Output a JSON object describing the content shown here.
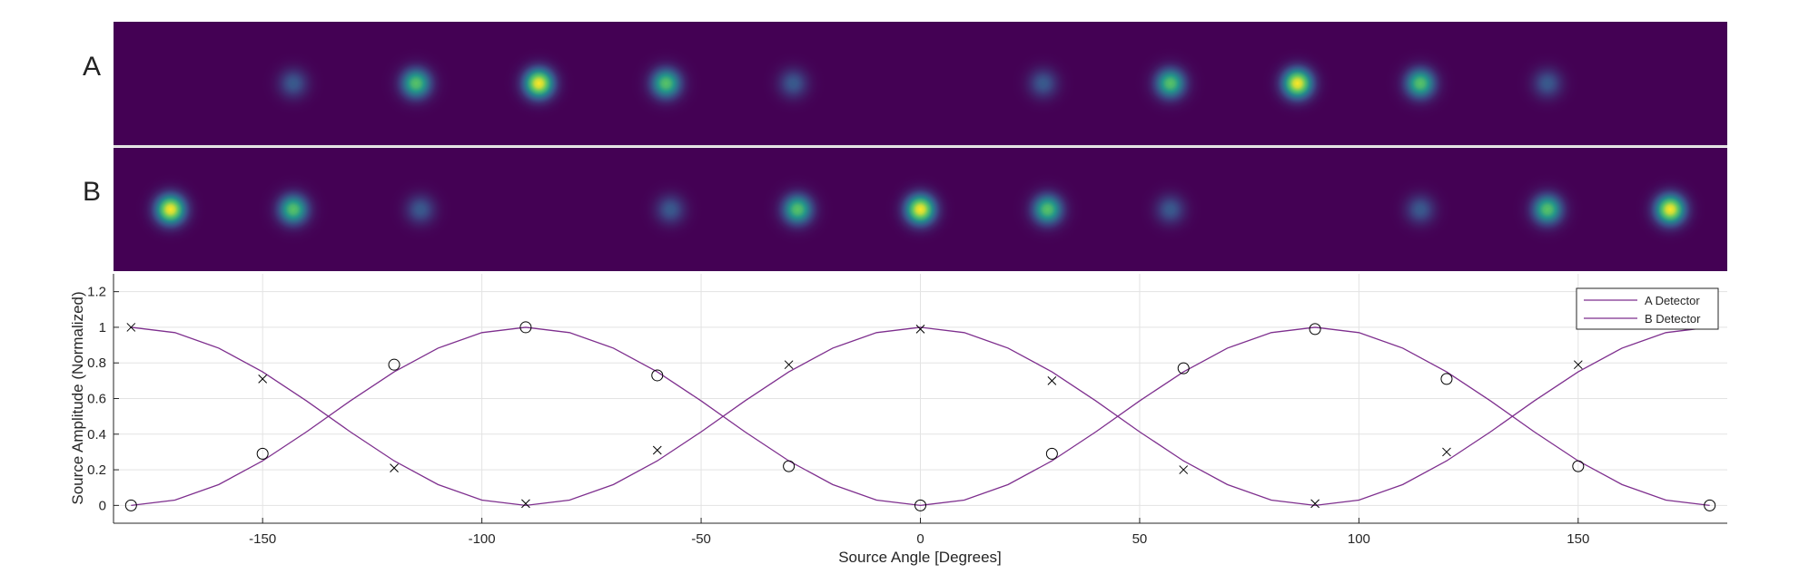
{
  "colors": {
    "image_background": "#440154",
    "curve": "#7e2f8e",
    "marker": "#000000",
    "grid": "#e3e3e3",
    "axis": "#262626",
    "blob_ramp": [
      "#440154",
      "#3b528b",
      "#21918c",
      "#5ec962",
      "#fde725"
    ]
  },
  "panels": {
    "a_label": "A",
    "b_label": "B",
    "a_spots": [
      {
        "x": -143,
        "intensity": 0.28
      },
      {
        "x": -115,
        "intensity": 0.72
      },
      {
        "x": -87,
        "intensity": 1.0
      },
      {
        "x": -58,
        "intensity": 0.72
      },
      {
        "x": -29,
        "intensity": 0.28
      },
      {
        "x": 28,
        "intensity": 0.28
      },
      {
        "x": 57,
        "intensity": 0.72
      },
      {
        "x": 86,
        "intensity": 1.0
      },
      {
        "x": 114,
        "intensity": 0.72
      },
      {
        "x": 143,
        "intensity": 0.28
      }
    ],
    "b_spots": [
      {
        "x": -171,
        "intensity": 1.0
      },
      {
        "x": -143,
        "intensity": 0.72
      },
      {
        "x": -114,
        "intensity": 0.28
      },
      {
        "x": -57,
        "intensity": 0.28
      },
      {
        "x": -28,
        "intensity": 0.72
      },
      {
        "x": 0,
        "intensity": 1.0
      },
      {
        "x": 29,
        "intensity": 0.72
      },
      {
        "x": 57,
        "intensity": 0.28
      },
      {
        "x": 114,
        "intensity": 0.28
      },
      {
        "x": 143,
        "intensity": 0.72
      },
      {
        "x": 171,
        "intensity": 1.0
      }
    ]
  },
  "chart_data": {
    "type": "line",
    "xlabel": "Source Angle [Degrees]",
    "ylabel": "Source Amplitude (Normalized)",
    "xlim": [
      -184,
      184
    ],
    "ylim": [
      -0.1,
      1.3
    ],
    "xticks": [
      -150,
      -100,
      -50,
      0,
      50,
      100,
      150
    ],
    "yticks": [
      0,
      0.2,
      0.4,
      0.6,
      0.8,
      1,
      1.2
    ],
    "xtick_labels": [
      "-150",
      "-100",
      "-50",
      "0",
      "50",
      "100",
      "150"
    ],
    "ytick_labels": [
      "0",
      "0.2",
      "0.4",
      "0.6",
      "0.8",
      "1",
      "1.2"
    ],
    "grid": true,
    "legend_position": "top-right",
    "series": [
      {
        "name": "A Detector",
        "curve_x": [
          -180,
          -170,
          -160,
          -150,
          -140,
          -130,
          -120,
          -110,
          -100,
          -90,
          -80,
          -70,
          -60,
          -50,
          -40,
          -30,
          -20,
          -10,
          0,
          10,
          20,
          30,
          40,
          50,
          60,
          70,
          80,
          90,
          100,
          110,
          120,
          130,
          140,
          150,
          160,
          170,
          180
        ],
        "curve_y": [
          0.0,
          0.03,
          0.117,
          0.25,
          0.413,
          0.587,
          0.75,
          0.883,
          0.97,
          1.0,
          0.97,
          0.883,
          0.75,
          0.587,
          0.413,
          0.25,
          0.117,
          0.03,
          0.0,
          0.03,
          0.117,
          0.25,
          0.413,
          0.587,
          0.75,
          0.883,
          0.97,
          1.0,
          0.97,
          0.883,
          0.75,
          0.587,
          0.413,
          0.25,
          0.117,
          0.03,
          0.0
        ],
        "marker": "circle",
        "marker_x": [
          -180,
          -150,
          -120,
          -90,
          -60,
          -30,
          0,
          30,
          60,
          90,
          120,
          150,
          180
        ],
        "marker_y": [
          0.0,
          0.29,
          0.79,
          1.0,
          0.73,
          0.22,
          0.0,
          0.29,
          0.77,
          0.99,
          0.71,
          0.22,
          0.0
        ]
      },
      {
        "name": "B Detector",
        "curve_x": [
          -180,
          -170,
          -160,
          -150,
          -140,
          -130,
          -120,
          -110,
          -100,
          -90,
          -80,
          -70,
          -60,
          -50,
          -40,
          -30,
          -20,
          -10,
          0,
          10,
          20,
          30,
          40,
          50,
          60,
          70,
          80,
          90,
          100,
          110,
          120,
          130,
          140,
          150,
          160,
          170,
          180
        ],
        "curve_y": [
          1.0,
          0.97,
          0.883,
          0.75,
          0.587,
          0.413,
          0.25,
          0.117,
          0.03,
          0.0,
          0.03,
          0.117,
          0.25,
          0.413,
          0.587,
          0.75,
          0.883,
          0.97,
          1.0,
          0.97,
          0.883,
          0.75,
          0.587,
          0.413,
          0.25,
          0.117,
          0.03,
          0.0,
          0.03,
          0.117,
          0.25,
          0.413,
          0.587,
          0.75,
          0.883,
          0.97,
          1.0
        ],
        "marker": "cross",
        "marker_x": [
          -180,
          -150,
          -120,
          -90,
          -60,
          -30,
          0,
          30,
          60,
          90,
          120,
          150
        ],
        "marker_y": [
          1.0,
          0.71,
          0.21,
          0.01,
          0.31,
          0.79,
          0.99,
          0.7,
          0.2,
          0.01,
          0.3,
          0.79
        ]
      }
    ]
  }
}
